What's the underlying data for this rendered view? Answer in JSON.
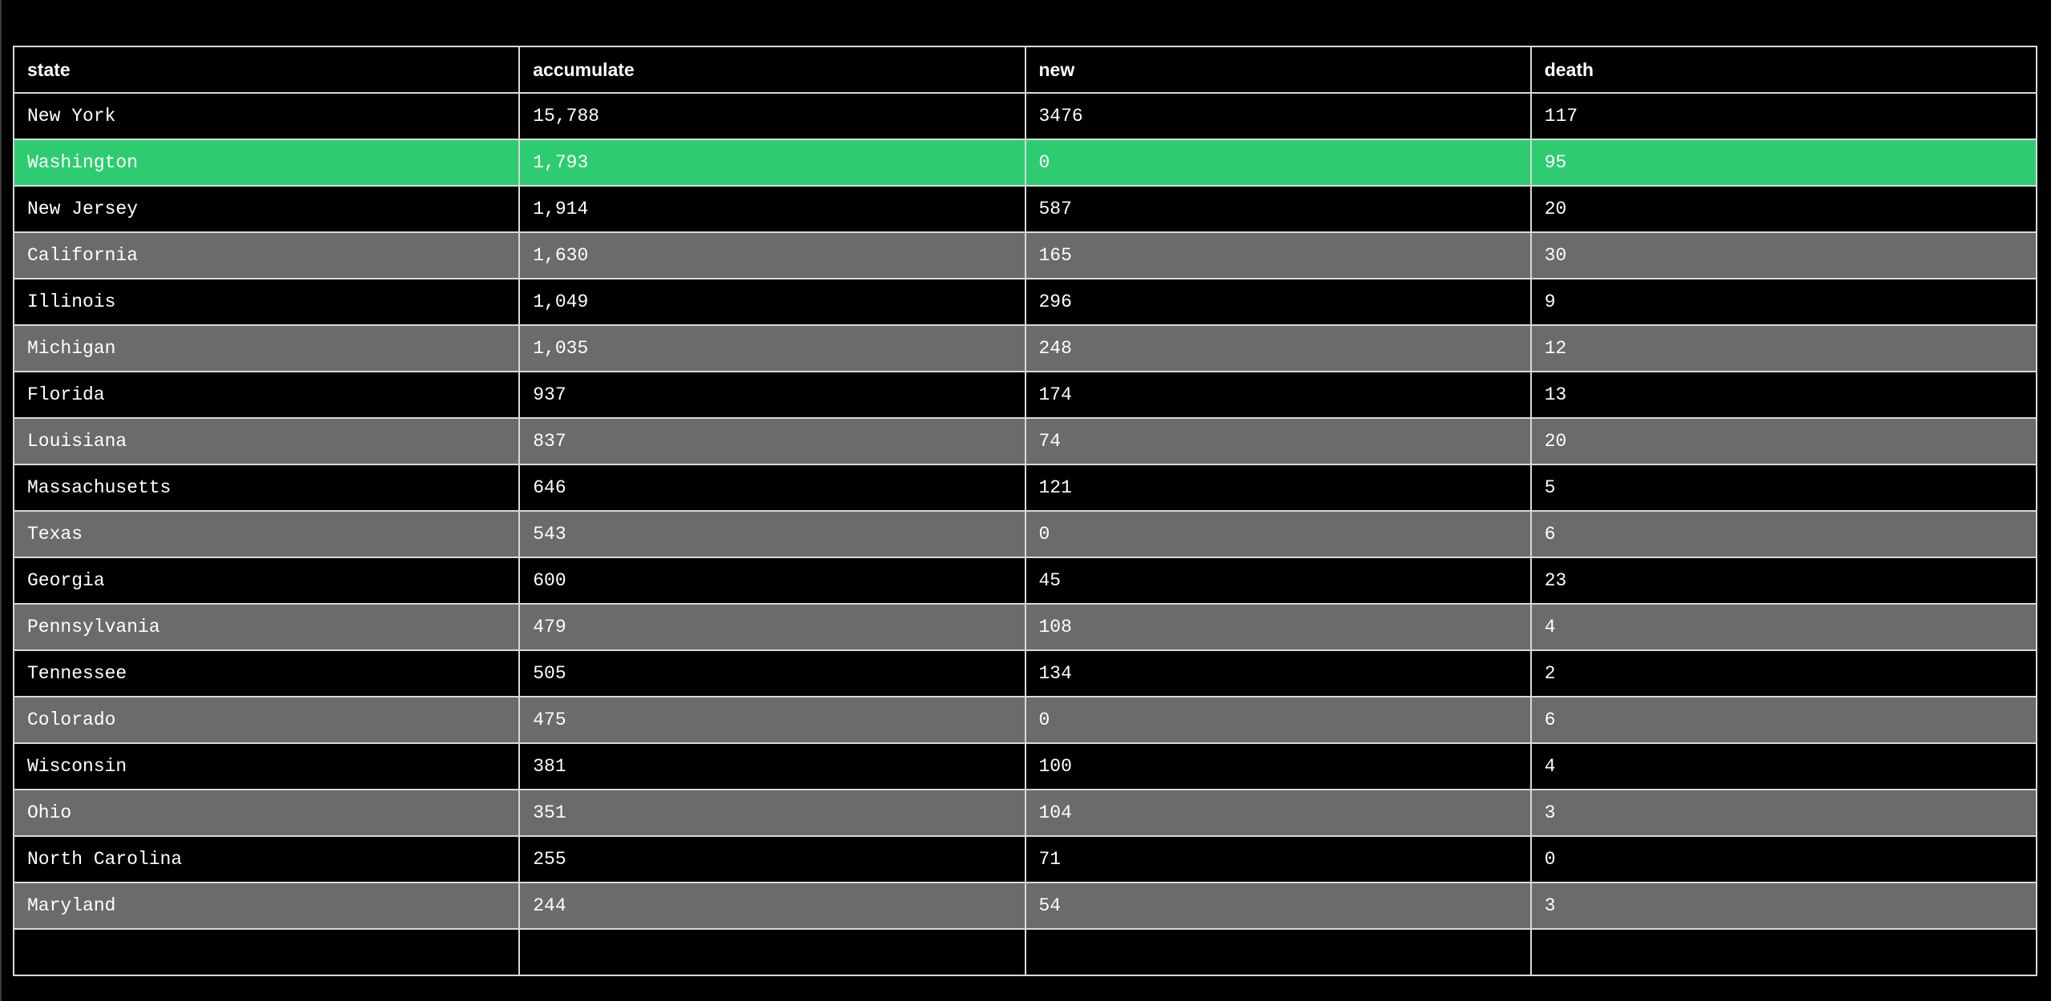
{
  "table": {
    "headers": [
      "state",
      "accumulate",
      "new",
      "death"
    ],
    "highlight_color": "#2ecc71",
    "stripe_color": "#6b6b6b",
    "rows": [
      {
        "state": "New York",
        "accumulate": "15,788",
        "new": "3476",
        "death": "117"
      },
      {
        "state": "Washington",
        "accumulate": "1,793",
        "new": "0",
        "death": "95"
      },
      {
        "state": "New Jersey",
        "accumulate": "1,914",
        "new": "587",
        "death": "20"
      },
      {
        "state": "California",
        "accumulate": "1,630",
        "new": "165",
        "death": "30"
      },
      {
        "state": "Illinois",
        "accumulate": "1,049",
        "new": "296",
        "death": "9"
      },
      {
        "state": "Michigan",
        "accumulate": "1,035",
        "new": "248",
        "death": "12"
      },
      {
        "state": "Florida",
        "accumulate": "937",
        "new": "174",
        "death": "13"
      },
      {
        "state": "Louisiana",
        "accumulate": "837",
        "new": "74",
        "death": "20"
      },
      {
        "state": "Massachusetts",
        "accumulate": "646",
        "new": "121",
        "death": "5"
      },
      {
        "state": "Texas",
        "accumulate": "543",
        "new": "0",
        "death": "6"
      },
      {
        "state": "Georgia",
        "accumulate": "600",
        "new": "45",
        "death": "23"
      },
      {
        "state": "Pennsylvania",
        "accumulate": "479",
        "new": "108",
        "death": "4"
      },
      {
        "state": "Tennessee",
        "accumulate": "505",
        "new": "134",
        "death": "2"
      },
      {
        "state": "Colorado",
        "accumulate": "475",
        "new": "0",
        "death": "6"
      },
      {
        "state": "Wisconsin",
        "accumulate": "381",
        "new": "100",
        "death": "4"
      },
      {
        "state": "Ohio",
        "accumulate": "351",
        "new": "104",
        "death": "3"
      },
      {
        "state": "North Carolina",
        "accumulate": "255",
        "new": "71",
        "death": "0"
      },
      {
        "state": "Maryland",
        "accumulate": "244",
        "new": "54",
        "death": "3"
      },
      {
        "state": "",
        "accumulate": "",
        "new": "",
        "death": ""
      }
    ]
  }
}
